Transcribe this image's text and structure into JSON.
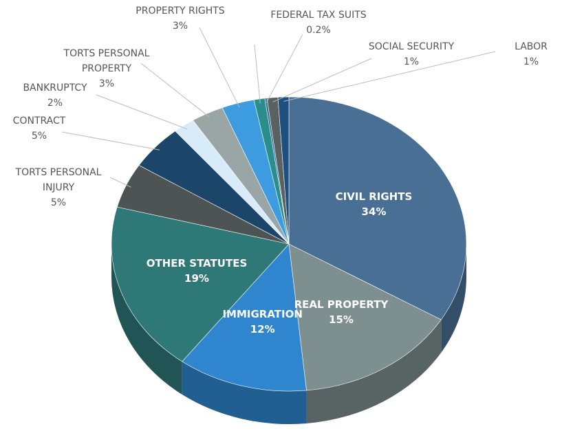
{
  "chart_data": {
    "type": "pie",
    "categories": [
      "CIVIL RIGHTS",
      "REAL PROPERTY",
      "IMMIGRATION",
      "OTHER STATUTES",
      "TORTS PERSONAL INJURY",
      "CONTRACT",
      "BANKRUPTCY",
      "TORTS PERSONAL PROPERTY",
      "PROPERTY RIGHTS",
      null,
      "FEDERAL TAX SUITS",
      "SOCIAL SECURITY",
      "LABOR"
    ],
    "values": [
      34,
      15,
      12,
      19,
      5,
      5,
      2,
      3,
      3,
      1,
      0.2,
      1,
      1
    ],
    "value_labels": [
      "34%",
      "15%",
      "12%",
      "19%",
      "5%",
      "5%",
      "2%",
      "3%",
      "3%",
      null,
      "0.2%",
      "1%",
      "1%"
    ],
    "colors": [
      "#4a6f95",
      "#7e8f8f",
      "#2f86cf",
      "#2f7878",
      "#4d5454",
      "#1c4669",
      "#d8ebf9",
      "#9aa5a5",
      "#3d9be0",
      "#2a8f8c",
      "#3a6e9a",
      "#5a6161",
      "#1f4f80"
    ]
  }
}
